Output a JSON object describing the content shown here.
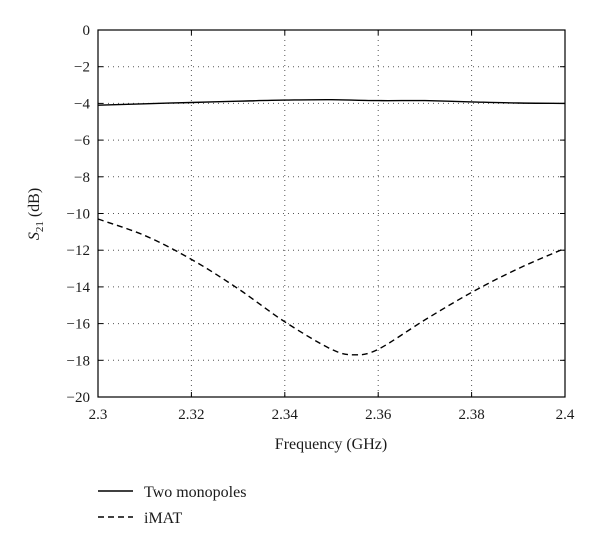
{
  "chart_data": {
    "type": "line",
    "title": "",
    "xlabel": "Frequency (GHz)",
    "ylabel": {
      "main": "S",
      "subscript": "21",
      "unit": "(dB)"
    },
    "xlim": [
      2.3,
      2.4
    ],
    "ylim": [
      -20,
      0
    ],
    "xticks": [
      2.3,
      2.32,
      2.34,
      2.36,
      2.38,
      2.4
    ],
    "xtick_labels": [
      "2.3",
      "2.32",
      "2.34",
      "2.36",
      "2.38",
      "2.4"
    ],
    "yticks": [
      0,
      -2,
      -4,
      -6,
      -8,
      -10,
      -12,
      -14,
      -16,
      -18,
      -20
    ],
    "ytick_labels": [
      "0",
      "−2",
      "−4",
      "−6",
      "−8",
      "−10",
      "−12",
      "−14",
      "−16",
      "−18",
      "−20"
    ],
    "grid": true,
    "grid_style": "dotted",
    "legend_position": "below plot, left",
    "series": [
      {
        "name": "Two monopoles",
        "style": "solid",
        "color": "#000000",
        "x": [
          2.3,
          2.31,
          2.32,
          2.33,
          2.34,
          2.35,
          2.36,
          2.37,
          2.38,
          2.39,
          2.4
        ],
        "values": [
          -4.1,
          -4.02,
          -3.95,
          -3.88,
          -3.82,
          -3.8,
          -3.85,
          -3.85,
          -3.92,
          -3.98,
          -4.0
        ]
      },
      {
        "name": "iMAT",
        "style": "dashed",
        "color": "#000000",
        "x": [
          2.3,
          2.31,
          2.32,
          2.33,
          2.34,
          2.35,
          2.355,
          2.36,
          2.37,
          2.38,
          2.39,
          2.4
        ],
        "values": [
          -10.3,
          -11.2,
          -12.5,
          -14.1,
          -15.9,
          -17.4,
          -17.7,
          -17.4,
          -15.8,
          -14.3,
          -13.0,
          -11.9
        ]
      }
    ]
  }
}
